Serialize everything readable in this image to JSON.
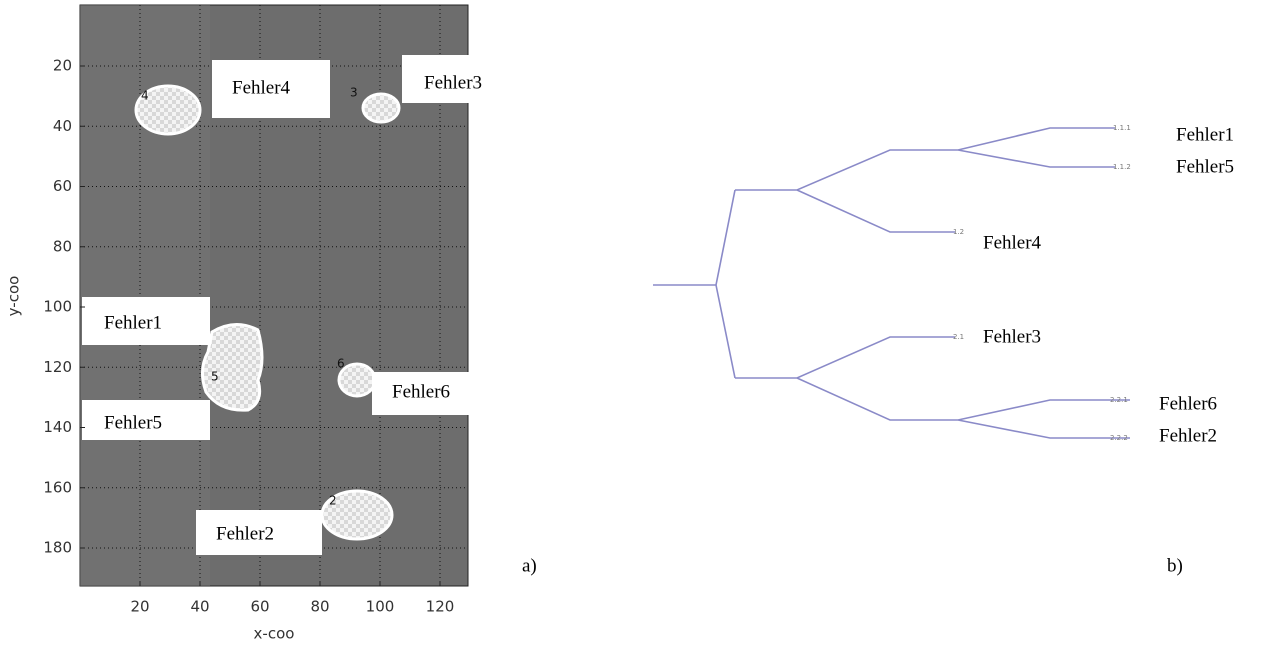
{
  "panel_a": {
    "label": "a)",
    "x_axis": {
      "label": "x-coo",
      "ticks": [
        20,
        40,
        60,
        80,
        100,
        120
      ]
    },
    "y_axis": {
      "label": "y-coo",
      "ticks": [
        20,
        40,
        60,
        80,
        100,
        120,
        140,
        160,
        180
      ]
    },
    "blob_numbers": [
      "4",
      "3",
      "5",
      "6",
      "2"
    ],
    "defect_labels": [
      "Fehler4",
      "Fehler3",
      "Fehler1",
      "Fehler5",
      "Fehler6",
      "Fehler2"
    ]
  },
  "panel_b": {
    "label": "b)",
    "nodes": [
      {
        "id": "1.1.1",
        "defect": "Fehler1"
      },
      {
        "id": "1.1.2",
        "defect": "Fehler5"
      },
      {
        "id": "1.2",
        "defect": "Fehler4"
      },
      {
        "id": "2.1",
        "defect": "Fehler3"
      },
      {
        "id": "2.2.1",
        "defect": "Fehler6"
      },
      {
        "id": "2.2.2",
        "defect": "Fehler2"
      }
    ]
  }
}
